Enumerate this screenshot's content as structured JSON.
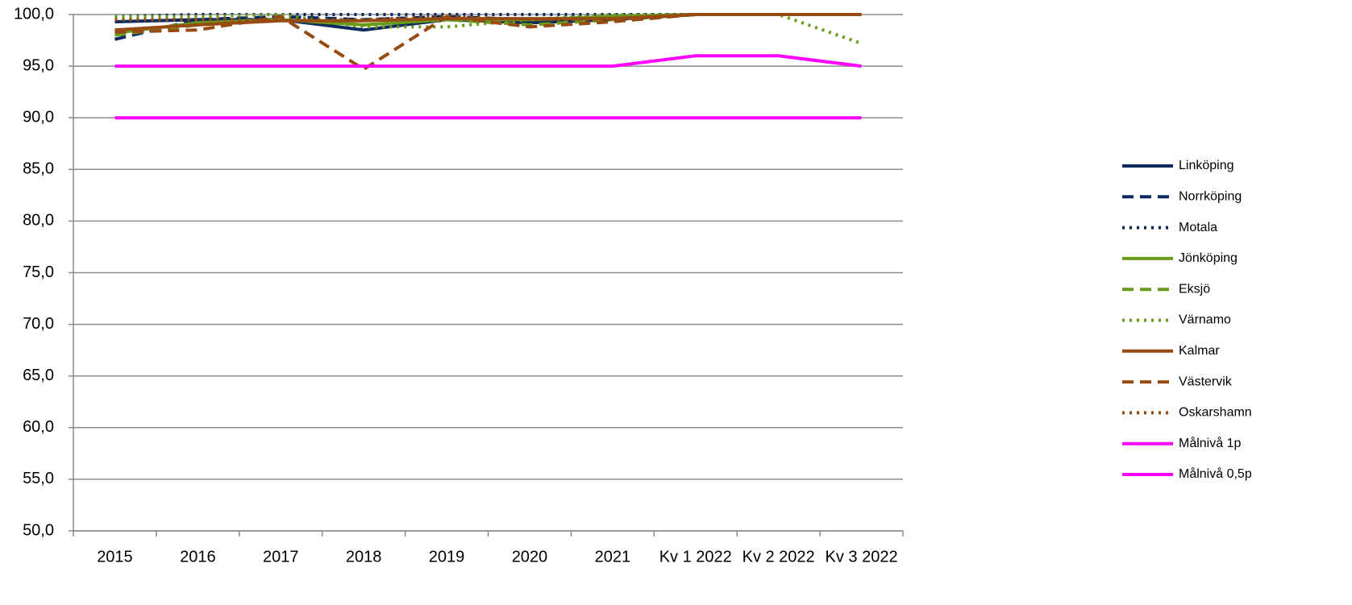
{
  "chart_data": {
    "type": "line",
    "categories": [
      "2015",
      "2016",
      "2017",
      "2018",
      "2019",
      "2020",
      "2021",
      "Kv 1 2022",
      "Kv 2 2022",
      "Kv 3 2022"
    ],
    "ylim": [
      50,
      100
    ],
    "yticks": [
      {
        "value": 50,
        "label": "50,0"
      },
      {
        "value": 55,
        "label": "55,0"
      },
      {
        "value": 60,
        "label": "60,0"
      },
      {
        "value": 65,
        "label": "65,0"
      },
      {
        "value": 70,
        "label": "70,0"
      },
      {
        "value": 75,
        "label": "75,0"
      },
      {
        "value": 80,
        "label": "80,0"
      },
      {
        "value": 85,
        "label": "85,0"
      },
      {
        "value": 90,
        "label": "90,0"
      },
      {
        "value": 95,
        "label": "95,0"
      },
      {
        "value": 100,
        "label": "100,0"
      }
    ],
    "grid": true,
    "legend": "right",
    "series": [
      {
        "name": "Linköping",
        "color": "#0e2a5e",
        "dash": "solid",
        "values": [
          99.3,
          99.5,
          99.5,
          98.5,
          99.5,
          99.2,
          99.5,
          100,
          100,
          100
        ]
      },
      {
        "name": "Norrköping",
        "color": "#0e2a5e",
        "dash": "dash",
        "values": [
          97.6,
          99.5,
          99.8,
          99.5,
          99.8,
          99.5,
          99.8,
          100,
          100,
          100
        ]
      },
      {
        "name": "Motala",
        "color": "#0e2a5e",
        "dash": "dot",
        "values": [
          99.8,
          100,
          100,
          100,
          100,
          100,
          100,
          100,
          100,
          100
        ]
      },
      {
        "name": "Jönköping",
        "color": "#6a9a1a",
        "dash": "solid",
        "values": [
          98.2,
          99.2,
          99.5,
          99,
          99.5,
          99.5,
          99.8,
          100,
          100,
          100
        ]
      },
      {
        "name": "Eksjö",
        "color": "#6a9a1a",
        "dash": "dash",
        "values": [
          98,
          99,
          99.5,
          99,
          99.5,
          99,
          99.5,
          100,
          100,
          100
        ]
      },
      {
        "name": "Värnamo",
        "color": "#6a9a1a",
        "dash": "dot",
        "values": [
          99.8,
          99.8,
          100,
          98.8,
          98.8,
          99.5,
          100,
          100,
          100,
          97.2
        ]
      },
      {
        "name": "Kalmar",
        "color": "#974a12",
        "dash": "solid",
        "values": [
          98.5,
          99,
          99.4,
          99.4,
          99.6,
          99.6,
          99.6,
          100,
          100,
          100
        ]
      },
      {
        "name": "Västervik",
        "color": "#974a12",
        "dash": "dash",
        "values": [
          98.3,
          98.5,
          99.8,
          94.7,
          99.8,
          98.8,
          99.3,
          100,
          100,
          100
        ]
      },
      {
        "name": "Oskarshamn",
        "color": "#974a12",
        "dash": "dot",
        "values": [
          99.5,
          99.5,
          99.5,
          99.5,
          99.8,
          99.5,
          99.5,
          100,
          100,
          100
        ]
      },
      {
        "name": "Målnivå 1p",
        "color": "#ff00ff",
        "dash": "solid",
        "values": [
          95,
          95,
          95,
          95,
          95,
          95,
          95,
          96,
          96,
          95
        ]
      },
      {
        "name": "Målnivå 0,5p",
        "color": "#ff00ff",
        "dash": "solid",
        "values": [
          90,
          90,
          90,
          90,
          90,
          90,
          90,
          90,
          90,
          90
        ]
      }
    ]
  }
}
